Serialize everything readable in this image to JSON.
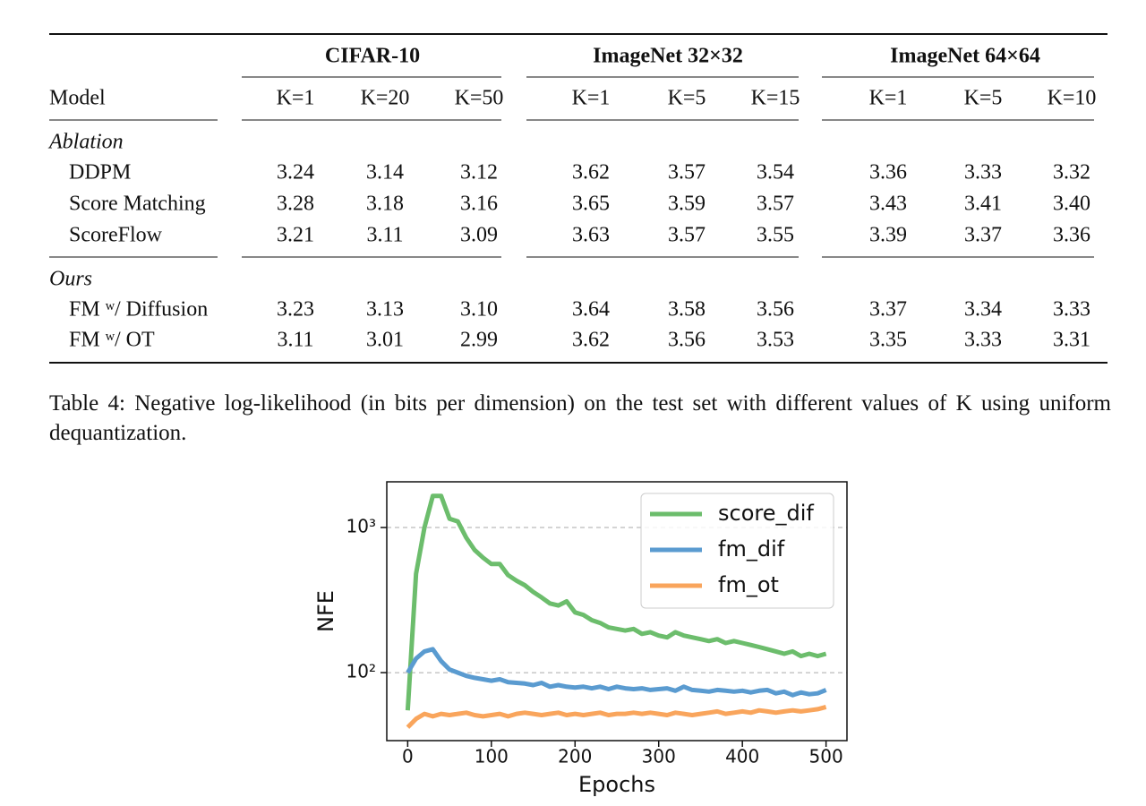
{
  "table": {
    "groups": [
      "CIFAR-10",
      "ImageNet 32×32",
      "ImageNet 64×64"
    ],
    "header": [
      "Model",
      "K=1",
      "K=20",
      "K=50",
      "K=1",
      "K=5",
      "K=15",
      "K=1",
      "K=5",
      "K=10"
    ],
    "sections": [
      {
        "title": "Ablation",
        "rows": [
          [
            "DDPM",
            "3.24",
            "3.14",
            "3.12",
            "3.62",
            "3.57",
            "3.54",
            "3.36",
            "3.33",
            "3.32"
          ],
          [
            "Score Matching",
            "3.28",
            "3.18",
            "3.16",
            "3.65",
            "3.59",
            "3.57",
            "3.43",
            "3.41",
            "3.40"
          ],
          [
            "ScoreFlow",
            "3.21",
            "3.11",
            "3.09",
            "3.63",
            "3.57",
            "3.55",
            "3.39",
            "3.37",
            "3.36"
          ]
        ]
      },
      {
        "title": "Ours",
        "rows": [
          [
            "FM ʷ/ Diffusion",
            "3.23",
            "3.13",
            "3.10",
            "3.64",
            "3.58",
            "3.56",
            "3.37",
            "3.34",
            "3.33"
          ],
          [
            "FM ʷ/ OT",
            "3.11",
            "3.01",
            "2.99",
            "3.62",
            "3.56",
            "3.53",
            "3.35",
            "3.33",
            "3.31"
          ]
        ]
      }
    ]
  },
  "caption": "Table 4: Negative log-likelihood (in bits per dimension) on the test set with different values of K using uniform dequantization.",
  "chart_data": {
    "type": "line",
    "xlabel": "Epochs",
    "ylabel": "NFE",
    "yscale": "log",
    "grid": true,
    "legend": "upper right",
    "xlim": [
      -25,
      525
    ],
    "xticks": [
      0,
      100,
      200,
      300,
      400,
      500
    ],
    "ylim": [
      34,
      2065
    ],
    "yticks": [
      {
        "value": 100,
        "label": "10²"
      },
      {
        "value": 1000,
        "label": "10³"
      }
    ],
    "x": [
      0,
      10,
      20,
      30,
      40,
      50,
      60,
      70,
      80,
      90,
      100,
      110,
      120,
      130,
      140,
      150,
      160,
      170,
      180,
      190,
      200,
      210,
      220,
      230,
      240,
      250,
      260,
      270,
      280,
      290,
      300,
      310,
      320,
      330,
      340,
      350,
      360,
      370,
      380,
      390,
      400,
      410,
      420,
      430,
      440,
      450,
      460,
      470,
      480,
      490,
      500
    ],
    "series": [
      {
        "name": "score_dif",
        "color": "#6cbd6c",
        "values": [
          55,
          480,
          1000,
          1650,
          1650,
          1150,
          1100,
          850,
          700,
          620,
          560,
          560,
          470,
          430,
          400,
          360,
          330,
          300,
          290,
          310,
          260,
          250,
          230,
          220,
          205,
          200,
          195,
          200,
          185,
          190,
          180,
          175,
          190,
          180,
          175,
          170,
          165,
          170,
          160,
          165,
          160,
          155,
          150,
          145,
          140,
          135,
          140,
          130,
          135,
          130,
          135
        ]
      },
      {
        "name": "fm_dif",
        "color": "#5a9bd0",
        "values": [
          100,
          125,
          140,
          145,
          120,
          105,
          100,
          95,
          92,
          90,
          88,
          90,
          86,
          85,
          84,
          82,
          85,
          80,
          82,
          80,
          79,
          80,
          78,
          80,
          77,
          80,
          78,
          77,
          78,
          76,
          77,
          78,
          75,
          80,
          76,
          75,
          74,
          76,
          75,
          74,
          75,
          73,
          75,
          76,
          72,
          74,
          70,
          73,
          71,
          72,
          76
        ]
      },
      {
        "name": "fm_ot",
        "color": "#f9a55c",
        "values": [
          42,
          48,
          52,
          50,
          52,
          51,
          52,
          53,
          51,
          50,
          51,
          52,
          50,
          52,
          53,
          52,
          51,
          52,
          53,
          51,
          52,
          51,
          52,
          53,
          51,
          52,
          52,
          53,
          52,
          53,
          52,
          51,
          53,
          52,
          51,
          52,
          53,
          54,
          52,
          53,
          54,
          53,
          55,
          54,
          53,
          54,
          55,
          54,
          55,
          56,
          58
        ]
      }
    ]
  }
}
